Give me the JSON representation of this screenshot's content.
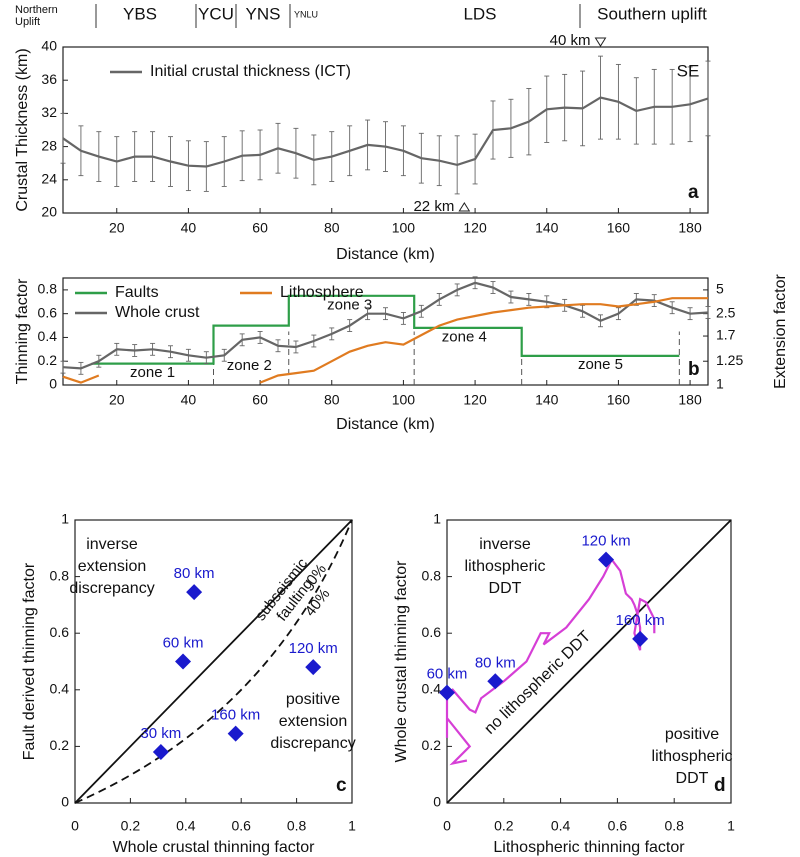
{
  "chart_data": [
    {
      "type": "line",
      "panel": "a",
      "y_label": "Crustal Thickness (km)",
      "x_label": "Distance (km)",
      "xlim": [
        5,
        185
      ],
      "xticks": [
        20,
        40,
        60,
        80,
        100,
        120,
        140,
        160,
        180
      ],
      "ylim": [
        20,
        40
      ],
      "yticks": [
        20,
        24,
        28,
        32,
        36,
        40
      ],
      "legend": "upper left",
      "x": [
        5,
        10,
        15,
        20,
        25,
        30,
        35,
        40,
        45,
        50,
        55,
        60,
        65,
        70,
        75,
        80,
        85,
        90,
        95,
        100,
        105,
        110,
        115,
        120,
        125,
        130,
        135,
        140,
        145,
        150,
        155,
        160,
        165,
        170,
        175,
        180,
        185
      ],
      "series": [
        {
          "name": "Initial crustal thickness (ICT)",
          "color": "#666666",
          "values": [
            29,
            27.5,
            26.8,
            26.2,
            26.8,
            26.8,
            26.2,
            25.7,
            25.6,
            26.2,
            26.9,
            27.0,
            27.8,
            27.2,
            26.4,
            26.8,
            27.5,
            28.2,
            28.0,
            27.5,
            26.6,
            26.3,
            25.8,
            26.5,
            30.0,
            30.2,
            31.0,
            32.5,
            32.7,
            32.6,
            33.9,
            33.4,
            32.3,
            32.8,
            32.8,
            33.1,
            33.8
          ],
          "errors": [
            3,
            3,
            3,
            3,
            3,
            3,
            3,
            3,
            3,
            3,
            3,
            3,
            3,
            3,
            3,
            3,
            3,
            3,
            3,
            3,
            3,
            3,
            3.5,
            3,
            3.5,
            3.5,
            4,
            4,
            4,
            4.5,
            5,
            4.5,
            4,
            4.5,
            4.5,
            4.5,
            4.5
          ]
        }
      ],
      "regions": [
        [
          "Northern",
          "Uplift"
        ],
        [
          "YBS"
        ],
        [
          "YCU"
        ],
        [
          "YNS"
        ],
        [
          "YNLU"
        ],
        [
          "LDS"
        ],
        [
          "Southern uplift"
        ],
        [
          "SE"
        ]
      ],
      "annotations": {
        "max": "40 km",
        "min": "22 km"
      }
    },
    {
      "type": "line",
      "panel": "b",
      "y_label": "Thinning factor",
      "y2_label": "Extension factor",
      "x_label": "Distance (km)",
      "xlim": [
        5,
        185
      ],
      "xticks": [
        20,
        40,
        60,
        80,
        100,
        120,
        140,
        160,
        180
      ],
      "ylim": [
        0,
        0.9
      ],
      "yticks": [
        0,
        0.2,
        0.4,
        0.6,
        0.8
      ],
      "y2lim": [
        1,
        10
      ],
      "y2ticks": [
        1,
        1.25,
        1.7,
        2.5,
        5
      ],
      "y2scale": "extension",
      "x": [
        5,
        10,
        15,
        20,
        25,
        30,
        35,
        40,
        45,
        50,
        55,
        60,
        65,
        70,
        75,
        80,
        85,
        90,
        95,
        100,
        105,
        110,
        115,
        120,
        125,
        130,
        135,
        140,
        145,
        150,
        155,
        160,
        165,
        170,
        175,
        180,
        185
      ],
      "series": [
        {
          "name": "Faults",
          "color": "#2e9e48",
          "x": [
            13,
            47,
            47,
            68,
            68,
            103,
            103,
            133,
            133,
            177
          ],
          "values": [
            0.18,
            0.18,
            0.5,
            0.5,
            0.75,
            0.75,
            0.48,
            0.48,
            0.245,
            0.245
          ]
        },
        {
          "name": "Whole crust",
          "color": "#666666",
          "values": [
            0.15,
            0.14,
            0.2,
            0.3,
            0.29,
            0.3,
            0.28,
            0.25,
            0.23,
            0.25,
            0.38,
            0.4,
            0.33,
            0.32,
            0.37,
            0.43,
            0.5,
            0.6,
            0.6,
            0.56,
            0.62,
            0.72,
            0.8,
            0.86,
            0.82,
            0.74,
            0.72,
            0.7,
            0.67,
            0.62,
            0.54,
            0.6,
            0.72,
            0.71,
            0.65,
            0.6,
            0.61
          ],
          "errors": [
            0.05,
            0.05,
            0.05,
            0.05,
            0.05,
            0.05,
            0.05,
            0.05,
            0.05,
            0.05,
            0.05,
            0.05,
            0.05,
            0.05,
            0.05,
            0.05,
            0.05,
            0.05,
            0.05,
            0.05,
            0.05,
            0.05,
            0.05,
            0.05,
            0.05,
            0.05,
            0.05,
            0.05,
            0.05,
            0.05,
            0.05,
            0.05,
            0.05,
            0.05,
            0.05,
            0.05,
            0.05
          ]
        },
        {
          "name": "Lithosphere",
          "color": "#e07b20",
          "values": [
            0.07,
            0.02,
            0.08,
            null,
            null,
            null,
            null,
            null,
            null,
            null,
            null,
            0.02,
            0.08,
            0.1,
            0.12,
            0.2,
            0.28,
            0.33,
            0.36,
            0.34,
            0.42,
            0.5,
            0.55,
            0.58,
            0.61,
            0.63,
            0.65,
            0.66,
            0.67,
            0.68,
            0.68,
            0.66,
            0.68,
            0.7,
            0.73,
            0.73,
            0.73
          ]
        }
      ],
      "zones": [
        "zone 1",
        "zone 2",
        "zone 3",
        "zone 4",
        "zone 5"
      ],
      "zone_boundaries": [
        47,
        68,
        103,
        133,
        177
      ]
    },
    {
      "type": "scatter",
      "panel": "c",
      "x_label": "Whole crustal thinning factor",
      "y_label": "Fault derived thinning factor",
      "xlim": [
        0,
        1
      ],
      "ylim": [
        0,
        1
      ],
      "xticks": [
        0,
        0.2,
        0.4,
        0.6,
        0.8,
        1
      ],
      "yticks": [
        0,
        0.2,
        0.4,
        0.6,
        0.8,
        1
      ],
      "series": [
        {
          "color": "#1a1acd",
          "x": [
            0.31,
            0.39,
            0.43,
            0.86,
            0.58
          ],
          "values": [
            0.18,
            0.5,
            0.745,
            0.48,
            0.245
          ],
          "labels": [
            "30 km",
            "60 km",
            "80 km",
            "120 km",
            "160 km"
          ]
        }
      ],
      "annotations": {
        "upper": [
          "inverse",
          "extension",
          "discrepancy"
        ],
        "lower": [
          "positive",
          "extension",
          "discrepancy"
        ],
        "curve": [
          "subseismic",
          "faulting"
        ],
        "zero": "0%",
        "forty": "40%"
      }
    },
    {
      "type": "scatter",
      "panel": "d",
      "x_label": "Lithospheric thinning factor",
      "y_label": "Whole crustal thinning factor",
      "xlim": [
        0,
        1
      ],
      "ylim": [
        0,
        1
      ],
      "xticks": [
        0,
        0.2,
        0.4,
        0.6,
        0.8,
        1
      ],
      "yticks": [
        0,
        0.2,
        0.4,
        0.6,
        0.8,
        1
      ],
      "path_color": "#d63fd6",
      "series": [
        {
          "color": "#1a1acd",
          "x": [
            0,
            0.17,
            0.56,
            0.68
          ],
          "values": [
            0.39,
            0.43,
            0.86,
            0.58
          ],
          "labels": [
            "60 km",
            "80 km",
            "120 km",
            "160 km"
          ]
        }
      ],
      "annotations": {
        "upper": [
          "inverse",
          "lithospheric",
          "DDT"
        ],
        "middle": "no lithospheric DDT",
        "lower": [
          "positive",
          "lithospheric",
          "DDT"
        ]
      }
    }
  ]
}
